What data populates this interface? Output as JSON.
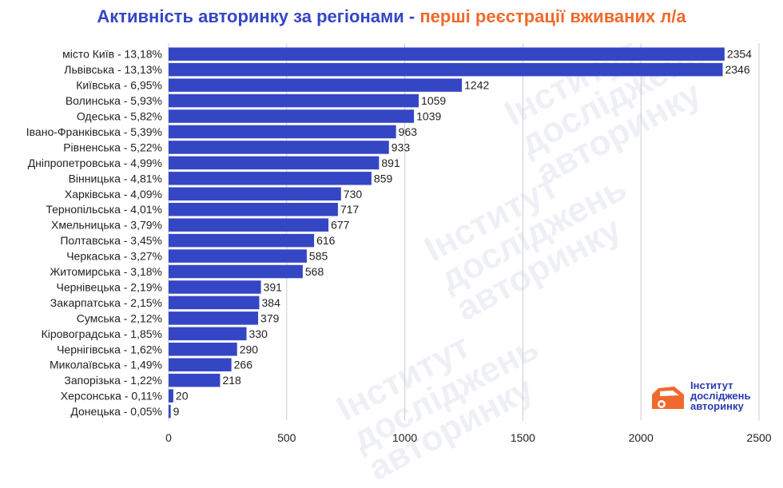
{
  "chart_data": {
    "type": "bar",
    "orientation": "horizontal",
    "title_part1": "Активність авторинку за регіонами",
    "title_separator": " - ",
    "title_part2": "перші реєстрації вживаних л/а",
    "categories": [
      "місто Київ - 13,18%",
      "Львівська - 13,13%",
      "Київська - 6,95%",
      "Волинська - 5,93%",
      "Одеська - 5,82%",
      "Івано-Франківська - 5,39%",
      "Рівненська - 5,22%",
      "Дніпропетровська - 4,99%",
      "Вінницька - 4,81%",
      "Харківська - 4,09%",
      "Тернопільська - 4,01%",
      "Хмельницька - 3,79%",
      "Полтавська - 3,45%",
      "Черкаська - 3,27%",
      "Житомирська - 3,18%",
      "Чернівецька - 2,19%",
      "Закарпатська - 2,15%",
      "Сумська - 2,12%",
      "Кіровоградська - 1,85%",
      "Чернігівська - 1,62%",
      "Миколаївська - 1,49%",
      "Запорізька - 1,22%",
      "Херсонська - 0,11%",
      "Донецька - 0,05%"
    ],
    "values": [
      2354,
      2346,
      1242,
      1059,
      1039,
      963,
      933,
      891,
      859,
      730,
      717,
      677,
      616,
      585,
      568,
      391,
      384,
      379,
      330,
      290,
      266,
      218,
      20,
      9
    ],
    "xlim": [
      0,
      2500
    ],
    "xticks": [
      0,
      500,
      1000,
      1500,
      2000,
      2500
    ],
    "bar_color": "#3546c4",
    "grid": "vertical",
    "data_labels": true
  },
  "logo": {
    "line1": "Інститут",
    "line2": "досліджень",
    "line3": "авторинку"
  },
  "watermark": {
    "line1": "Інститут",
    "line2": "досліджень",
    "line3": "авторинку"
  }
}
